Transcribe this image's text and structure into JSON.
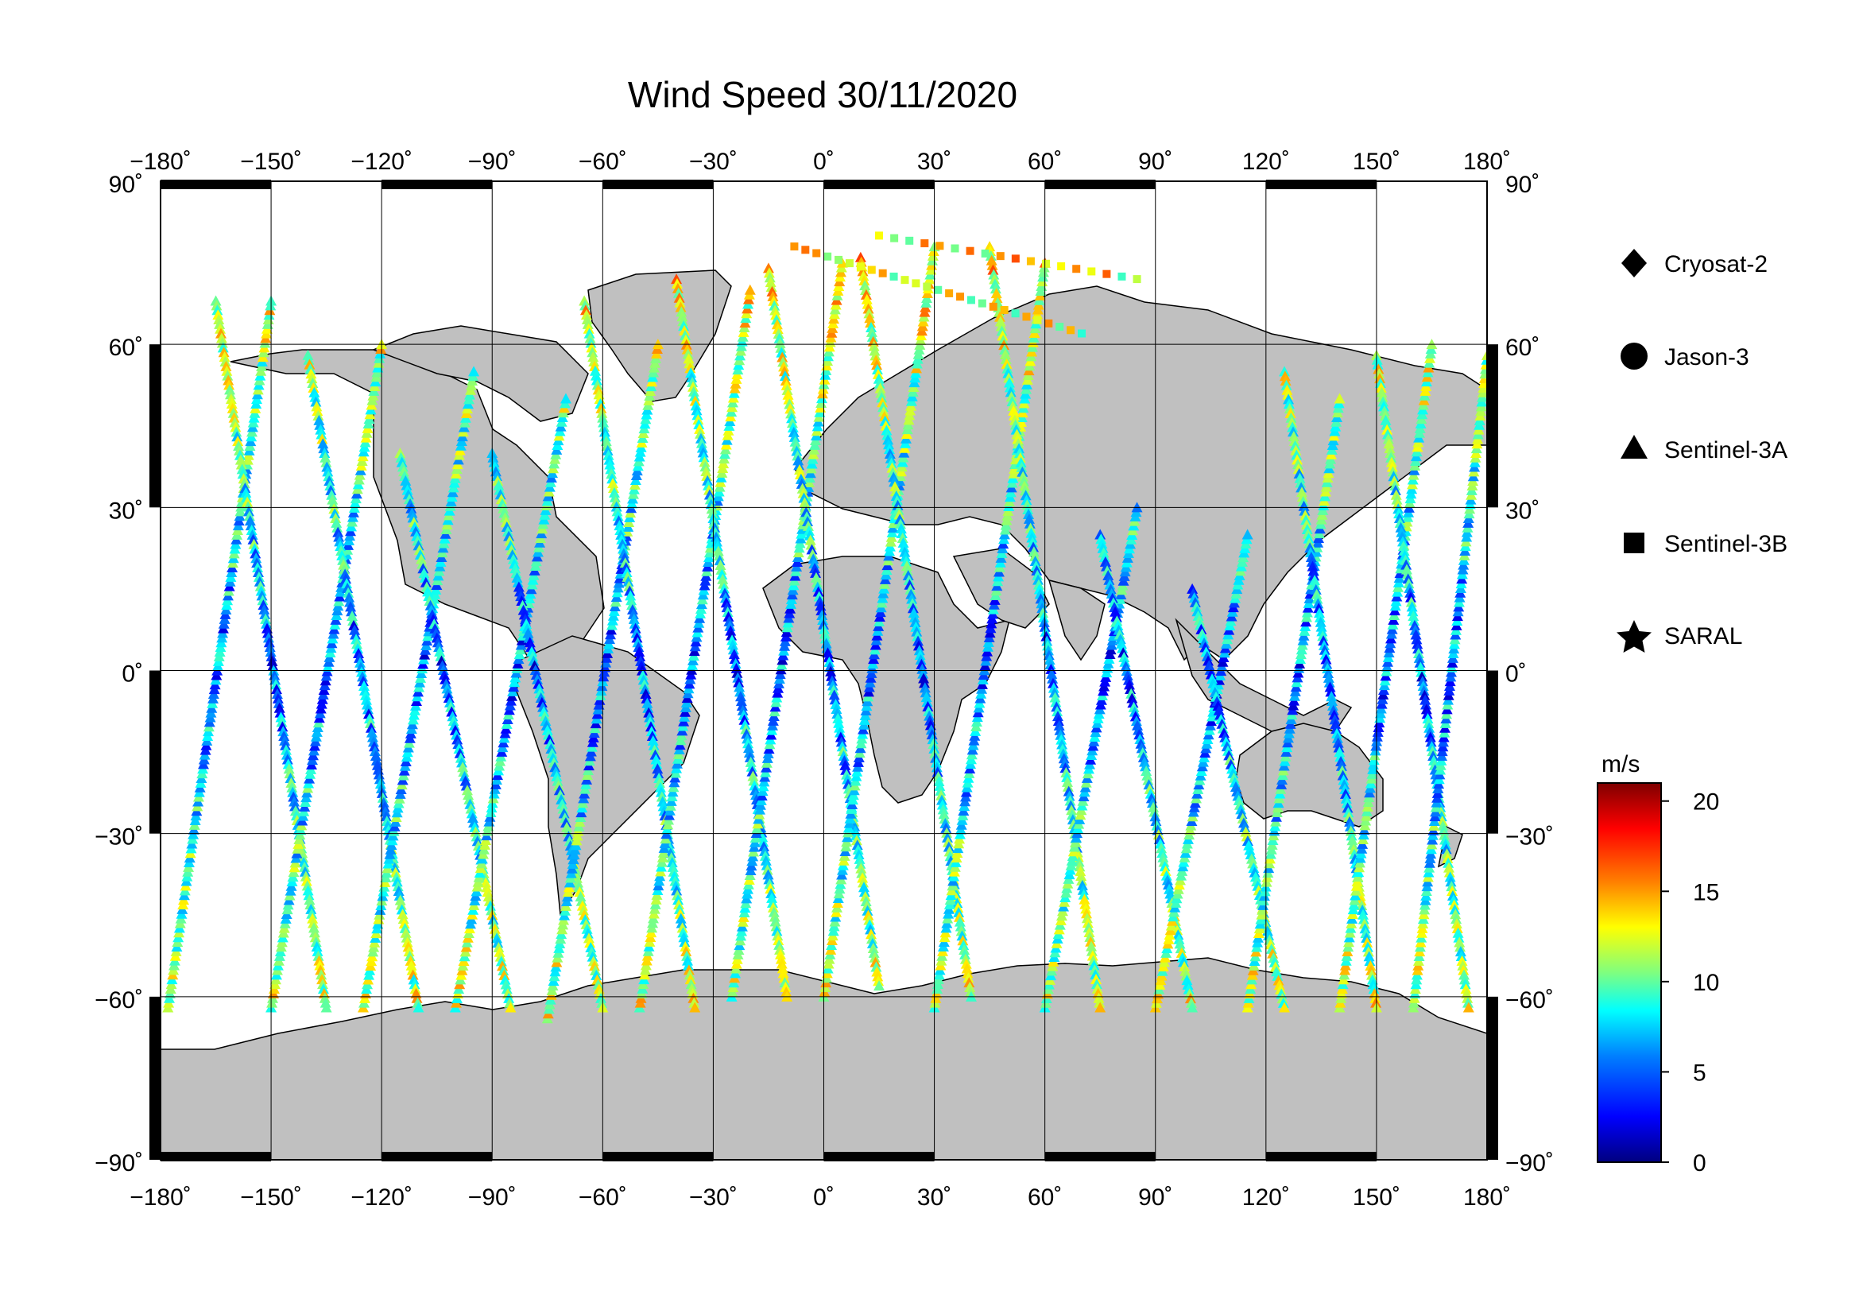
{
  "title": "Wind Speed 30/11/2020",
  "chart_data": {
    "type": "scatter",
    "title": "Wind Speed 30/11/2020",
    "projection": "equirectangular",
    "xlim": [
      -180,
      180
    ],
    "ylim": [
      -90,
      90
    ],
    "x_ticks": [
      -180,
      -150,
      -120,
      -90,
      -60,
      -30,
      0,
      30,
      60,
      90,
      120,
      150,
      180
    ],
    "y_ticks": [
      -90,
      -60,
      -30,
      0,
      30,
      60,
      90
    ],
    "x_tick_labels": [
      "−180˚",
      "−150˚",
      "−120˚",
      "−90˚",
      "−60˚",
      "−30˚",
      "0˚",
      "30˚",
      "60˚",
      "90˚",
      "120˚",
      "150˚",
      "180˚"
    ],
    "y_tick_labels": [
      "−90˚",
      "−60˚",
      "−30˚",
      "0˚",
      "30˚",
      "60˚",
      "90˚"
    ],
    "grid": true,
    "land_color": "#c0c0c0",
    "ocean_color": "#ffffff",
    "legend_position": "right",
    "legend": [
      {
        "name": "Cryosat-2",
        "marker": "diamond"
      },
      {
        "name": "Jason-3",
        "marker": "circle"
      },
      {
        "name": "Sentinel-3A",
        "marker": "triangle"
      },
      {
        "name": "Sentinel-3B",
        "marker": "square"
      },
      {
        "name": "SARAL",
        "marker": "star"
      }
    ],
    "colorbar": {
      "label": "m/s",
      "range": [
        0,
        21
      ],
      "ticks": [
        0,
        5,
        10,
        15,
        20
      ],
      "tick_labels": [
        "0",
        "5",
        "10",
        "15",
        "20"
      ],
      "colormap": [
        "#00007f",
        "#0000ff",
        "#007fff",
        "#00ffff",
        "#7fff7f",
        "#ffff00",
        "#ff7f00",
        "#ff0000",
        "#7f0000"
      ]
    },
    "series": [
      {
        "marker": "triangle",
        "tracks": [
          {
            "start": [
              -178,
              -62
            ],
            "end": [
              -150,
              68
            ]
          },
          {
            "start": [
              -165,
              68
            ],
            "end": [
              -135,
              -62
            ]
          },
          {
            "start": [
              -150,
              -62
            ],
            "end": [
              -120,
              60
            ]
          },
          {
            "start": [
              -140,
              58
            ],
            "end": [
              -110,
              -62
            ]
          },
          {
            "start": [
              -125,
              -62
            ],
            "end": [
              -95,
              55
            ]
          },
          {
            "start": [
              -115,
              40
            ],
            "end": [
              -85,
              -62
            ]
          },
          {
            "start": [
              -100,
              -62
            ],
            "end": [
              -70,
              50
            ]
          },
          {
            "start": [
              -90,
              40
            ],
            "end": [
              -60,
              -62
            ]
          },
          {
            "start": [
              -75,
              -64
            ],
            "end": [
              -45,
              60
            ]
          },
          {
            "start": [
              -65,
              68
            ],
            "end": [
              -35,
              -62
            ]
          },
          {
            "start": [
              -50,
              -62
            ],
            "end": [
              -20,
              70
            ]
          },
          {
            "start": [
              -40,
              72
            ],
            "end": [
              -10,
              -60
            ]
          },
          {
            "start": [
              -25,
              -60
            ],
            "end": [
              5,
              75
            ]
          },
          {
            "start": [
              -15,
              74
            ],
            "end": [
              15,
              -58
            ]
          },
          {
            "start": [
              0,
              -60
            ],
            "end": [
              30,
              78
            ]
          },
          {
            "start": [
              10,
              76
            ],
            "end": [
              40,
              -60
            ]
          },
          {
            "start": [
              30,
              -62
            ],
            "end": [
              60,
              75
            ]
          },
          {
            "start": [
              45,
              78
            ],
            "end": [
              75,
              -62
            ]
          },
          {
            "start": [
              60,
              -62
            ],
            "end": [
              85,
              30
            ]
          },
          {
            "start": [
              75,
              25
            ],
            "end": [
              100,
              -62
            ]
          },
          {
            "start": [
              90,
              -62
            ],
            "end": [
              115,
              25
            ]
          },
          {
            "start": [
              100,
              15
            ],
            "end": [
              125,
              -62
            ]
          },
          {
            "start": [
              115,
              -62
            ],
            "end": [
              140,
              50
            ]
          },
          {
            "start": [
              125,
              55
            ],
            "end": [
              150,
              -62
            ]
          },
          {
            "start": [
              140,
              -62
            ],
            "end": [
              165,
              60
            ]
          },
          {
            "start": [
              150,
              58
            ],
            "end": [
              175,
              -62
            ]
          },
          {
            "start": [
              160,
              -62
            ],
            "end": [
              180,
              58
            ]
          }
        ]
      },
      {
        "marker": "square",
        "tracks": [
          {
            "start": [
              -8,
              78
            ],
            "end": [
              70,
              62
            ]
          },
          {
            "start": [
              15,
              80
            ],
            "end": [
              85,
              72
            ]
          }
        ]
      }
    ]
  }
}
